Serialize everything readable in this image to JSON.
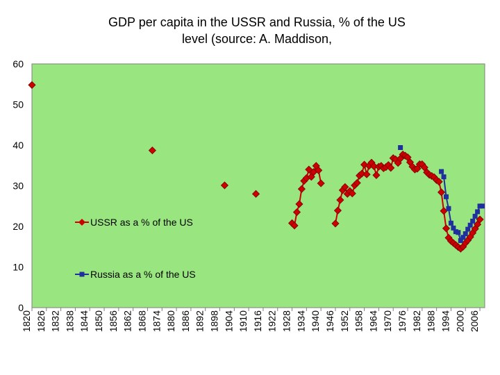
{
  "chart_data": {
    "type": "line",
    "title_lines": [
      "GDP  per capita in the USSR and Russia, % of the US",
      "level (source: A. Maddison,"
    ],
    "xlabel": "",
    "ylabel": "",
    "x_start": 1820,
    "x_end": 2008,
    "x_ticks": [
      1820,
      1826,
      1832,
      1838,
      1844,
      1850,
      1856,
      1862,
      1868,
      1874,
      1880,
      1886,
      1892,
      1898,
      1904,
      1910,
      1916,
      1922,
      1928,
      1934,
      1940,
      1946,
      1952,
      1958,
      1964,
      1970,
      1976,
      1982,
      1988,
      1994,
      2000,
      2006
    ],
    "ylim": [
      0,
      60
    ],
    "y_ticks": [
      0,
      10,
      20,
      30,
      40,
      50,
      60
    ],
    "grid": false,
    "colors": {
      "plot_bg": "#99e680",
      "ussr": "#cc0000",
      "russia": "#1f2f9e",
      "axis": "#7f7f7f"
    },
    "series": [
      {
        "name": "USSR as a % of the US",
        "marker": "diamond",
        "x": [
          1820,
          1870,
          1900,
          1913,
          1928,
          1929,
          1930,
          1931,
          1932,
          1933,
          1934,
          1935,
          1936,
          1937,
          1938,
          1939,
          1940,
          1946,
          1947,
          1948,
          1949,
          1950,
          1951,
          1952,
          1953,
          1954,
          1955,
          1956,
          1957,
          1958,
          1959,
          1960,
          1961,
          1962,
          1963,
          1964,
          1965,
          1966,
          1967,
          1968,
          1969,
          1970,
          1971,
          1972,
          1973,
          1974,
          1975,
          1976,
          1977,
          1978,
          1979,
          1980,
          1981,
          1982,
          1983,
          1984,
          1985,
          1986,
          1987,
          1988,
          1989,
          1990,
          1991,
          1992,
          1993,
          1994,
          1995,
          1996,
          1997,
          1998,
          1999,
          2000,
          2001,
          2002,
          2003,
          2004,
          2005,
          2006
        ],
        "values": [
          54.8,
          38.7,
          30.1,
          28.0,
          20.8,
          20.2,
          23.5,
          25.5,
          29.2,
          31.2,
          31.9,
          34.0,
          32.2,
          33.4,
          34.9,
          33.8,
          30.6,
          20.7,
          23.9,
          26.5,
          28.9,
          29.7,
          28.0,
          28.7,
          28.1,
          30.1,
          30.7,
          32.5,
          33.0,
          35.2,
          32.8,
          34.9,
          35.7,
          34.8,
          32.6,
          34.7,
          34.9,
          34.3,
          34.6,
          35.1,
          34.4,
          36.8,
          36.5,
          35.6,
          36.7,
          37.7,
          37.4,
          37.0,
          35.8,
          34.7,
          34.0,
          34.2,
          35.3,
          35.3,
          34.5,
          33.3,
          32.7,
          32.4,
          32.1,
          31.4,
          31.0,
          28.4,
          23.8,
          19.5,
          17.2,
          16.4,
          15.9,
          15.4,
          14.9,
          14.5,
          15.0,
          15.9,
          16.6,
          17.4,
          18.4,
          19.4,
          20.5,
          21.7
        ]
      },
      {
        "name": "Russia as a % of the US",
        "marker": "square",
        "x": [
          1973,
          1990,
          1991,
          1992,
          1993,
          1994,
          1995,
          1996,
          1997,
          1998,
          1999,
          2000,
          2001,
          2002,
          2003,
          2004,
          2005,
          2006,
          2007
        ],
        "values": [
          39.4,
          33.5,
          32.2,
          27.3,
          24.4,
          20.8,
          19.6,
          18.7,
          18.5,
          16.5,
          17.3,
          18.2,
          19.3,
          20.3,
          21.3,
          22.5,
          23.6,
          25.0,
          25.0
        ]
      }
    ],
    "legend": [
      "USSR as a % of the US",
      "Russia as a % of the US"
    ]
  }
}
